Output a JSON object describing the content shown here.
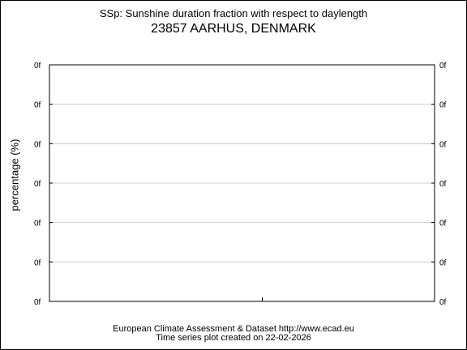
{
  "title": "SSp: Sunshine duration fraction with respect to daylength",
  "subtitle": "23857 AARHUS, DENMARK",
  "footer": {
    "line1": "European Climate Assessment & Dataset  http://www.ecad.eu",
    "line2": "Time series plot created on 22-02-2026"
  },
  "chart_data": {
    "type": "line",
    "title": "SSp: Sunshine duration fraction with respect to daylength",
    "subtitle": "23857 AARHUS, DENMARK",
    "xlabel": "",
    "ylabel": "percentage (%)",
    "y_tick_labels": [
      "0f",
      "0f",
      "0f",
      "0f",
      "0f",
      "0f",
      "0f"
    ],
    "grid": true,
    "series": []
  }
}
